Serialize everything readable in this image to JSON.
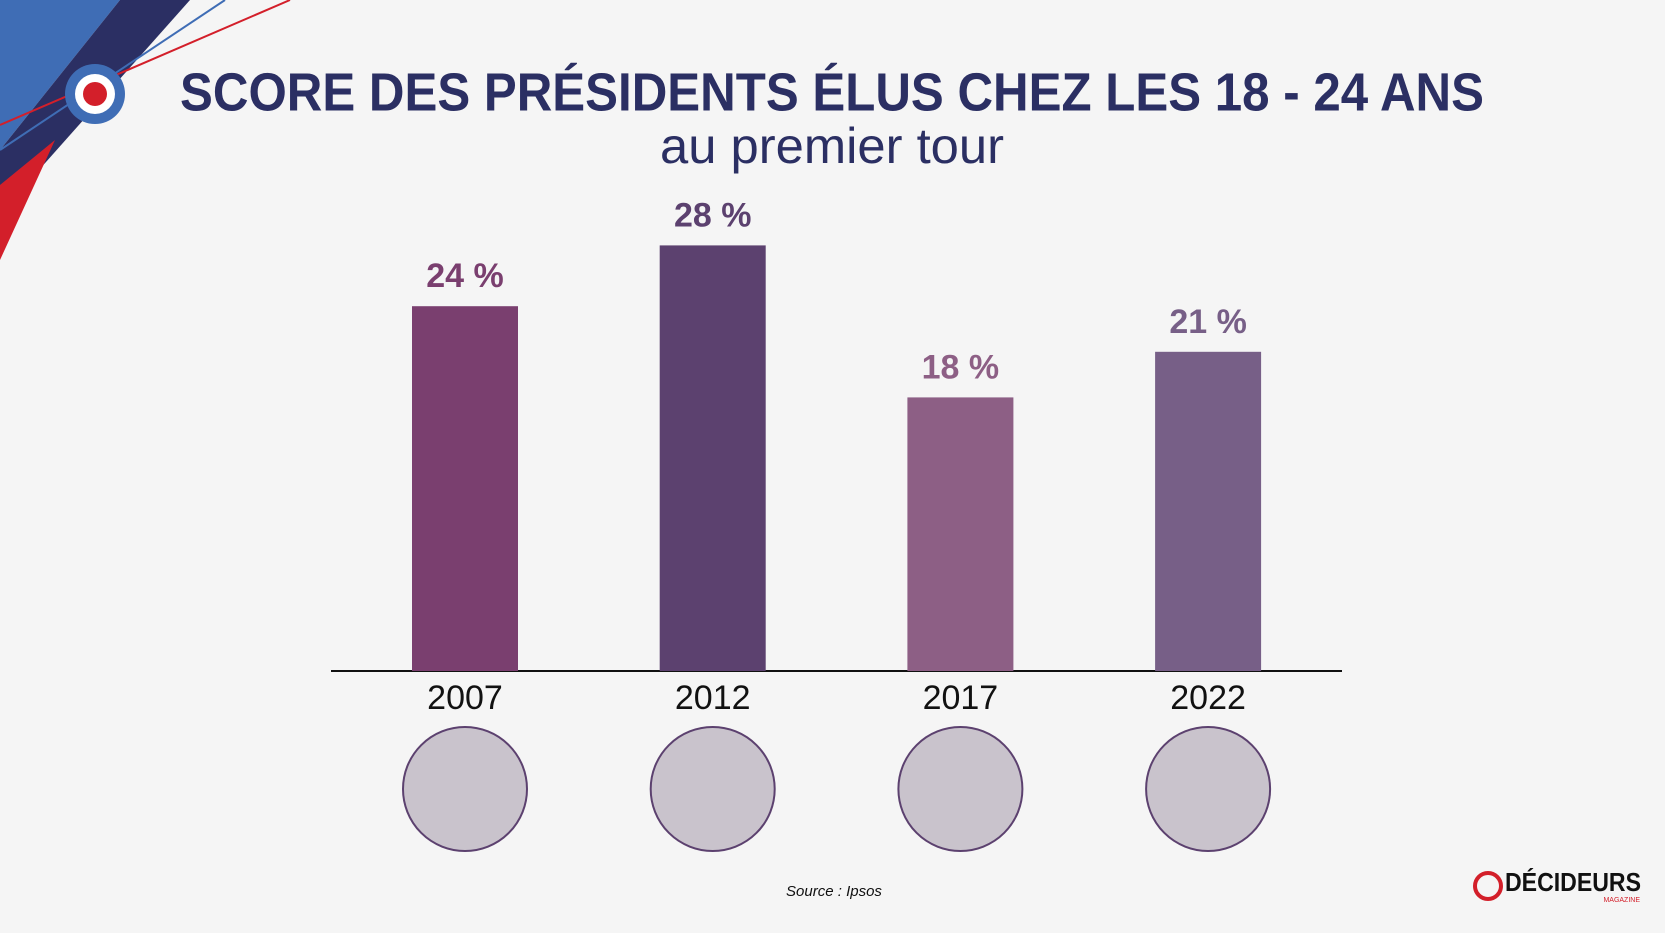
{
  "chart_data": {
    "type": "bar",
    "title": "SCORE DES PRÉSIDENTS ÉLUS CHEZ LES 18 - 24 ANS",
    "subtitle": "au premier tour",
    "categories": [
      "2007",
      "2012",
      "2017",
      "2022"
    ],
    "values": [
      24,
      28,
      18,
      21
    ],
    "value_labels": [
      "24 %",
      "28 %",
      "18 %",
      "21 %"
    ],
    "colors": [
      "#7a3f6f",
      "#5c416f",
      "#8d5f85",
      "#775f87"
    ],
    "source": "Source : Ipsos"
  },
  "logo": {
    "name": "DÉCIDEURS",
    "sub": "MAGAZINE"
  }
}
